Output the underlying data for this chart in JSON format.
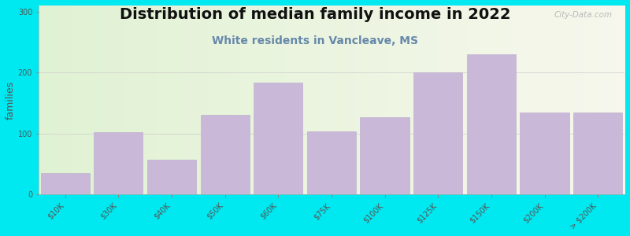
{
  "title": "Distribution of median family income in 2022",
  "subtitle": "White residents in Vancleave, MS",
  "ylabel": "families",
  "categories": [
    "$10K",
    "$30K",
    "$40K",
    "$50K",
    "$60K",
    "$75K",
    "$100K",
    "$125K",
    "$150K",
    "$200K",
    "> $200K"
  ],
  "values": [
    35,
    102,
    57,
    130,
    183,
    103,
    127,
    200,
    230,
    135,
    135
  ],
  "bar_color": "#c9b8d8",
  "bar_edge_color": "#b8a8cc",
  "background_outer": "#00e8f0",
  "title_fontsize": 14,
  "subtitle_fontsize": 10,
  "subtitle_color": "#6688aa",
  "ylabel_fontsize": 9,
  "tick_fontsize": 7,
  "ylim": [
    0,
    310
  ],
  "yticks": [
    0,
    100,
    200,
    300
  ],
  "watermark_text": "City-Data.com"
}
